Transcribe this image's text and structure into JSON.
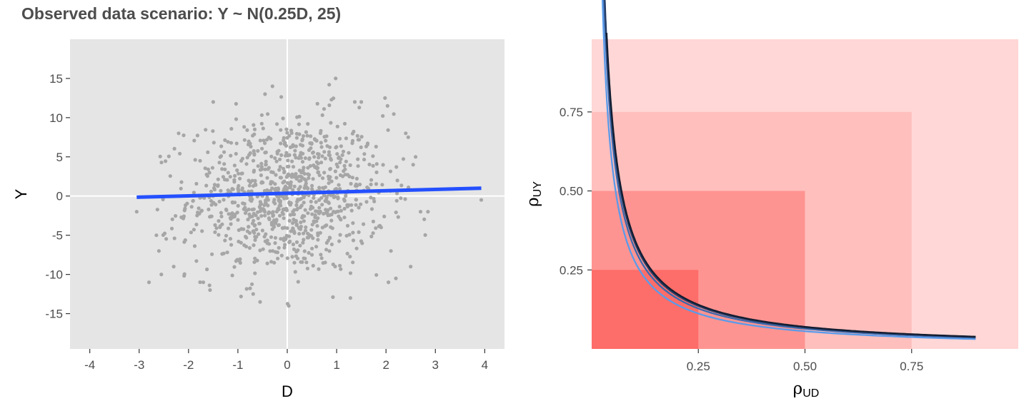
{
  "title": "Observed data scenario: Y ~ N(0.25D, 25)",
  "chart_data": [
    {
      "type": "scatter",
      "xlabel": "D",
      "ylabel": "Y",
      "xlim": [
        -4.4,
        4.4
      ],
      "ylim": [
        -19.5,
        20
      ],
      "x_ticks": [
        {
          "v": -4,
          "label": "-4"
        },
        {
          "v": -3,
          "label": "-3"
        },
        {
          "v": -2,
          "label": "-2"
        },
        {
          "v": -1,
          "label": "-1"
        },
        {
          "v": 0,
          "label": "0"
        },
        {
          "v": 1,
          "label": "1"
        },
        {
          "v": 2,
          "label": "2"
        },
        {
          "v": 3,
          "label": "3"
        },
        {
          "v": 4,
          "label": "4"
        }
      ],
      "y_ticks": [
        {
          "v": -15,
          "label": "-15"
        },
        {
          "v": -10,
          "label": "-10"
        },
        {
          "v": -5,
          "label": "-5"
        },
        {
          "v": 0,
          "label": "0"
        },
        {
          "v": 5,
          "label": "5"
        },
        {
          "v": 10,
          "label": "10"
        },
        {
          "v": 15,
          "label": "15"
        }
      ],
      "n_points": 1000,
      "point_sd": {
        "x": 1.0,
        "y": 5.0
      },
      "points": [
        [
          -3.05,
          -2.0
        ],
        [
          3.93,
          -0.5
        ],
        [
          -2.8,
          -11.0
        ],
        [
          -2.55,
          -10.0
        ],
        [
          -2.65,
          -5.0
        ],
        [
          -2.6,
          -7.0
        ],
        [
          2.85,
          -2.0
        ],
        [
          2.7,
          -2.0
        ],
        [
          2.55,
          4.0
        ],
        [
          2.6,
          5.0
        ],
        [
          2.4,
          8.0
        ],
        [
          2.45,
          7.5
        ],
        [
          1.98,
          12.5
        ],
        [
          2.03,
          11.5
        ],
        [
          0.98,
          15.0
        ],
        [
          0.85,
          14.2
        ],
        [
          -0.3,
          14.0
        ],
        [
          -0.45,
          13.0
        ],
        [
          2.2,
          -10.5
        ],
        [
          2.05,
          -11.0
        ],
        [
          2.5,
          -9.0
        ],
        [
          -0.55,
          -13.5
        ],
        [
          0.03,
          -14.0
        ],
        [
          1.28,
          -13.0
        ],
        [
          -2.2,
          8.0
        ],
        [
          -1.5,
          12.0
        ],
        [
          1.5,
          12.0
        ],
        [
          -2.3,
          -9.0
        ],
        [
          2.1,
          -7.0
        ],
        [
          -1.7,
          -11.0
        ]
      ],
      "series": [
        {
          "name": "",
          "type": "line",
          "color": "#2450ff",
          "x": [
            -3.05,
            3.93
          ],
          "y": [
            -0.15,
            1.0
          ]
        }
      ]
    },
    {
      "type": "line",
      "xlabel": {
        "symbol": "ρ",
        "sub": "UD"
      },
      "ylabel": {
        "symbol": "ρ",
        "sub": "UY"
      },
      "xlim": [
        0,
        1
      ],
      "ylim": [
        0,
        0.98
      ],
      "x_ticks": [
        {
          "v": 0.25,
          "label": "0.25"
        },
        {
          "v": 0.5,
          "label": "0.50"
        },
        {
          "v": 0.75,
          "label": "0.75"
        }
      ],
      "y_ticks": [
        {
          "v": 0.25,
          "label": "0.25"
        },
        {
          "v": 0.5,
          "label": "0.50"
        },
        {
          "v": 0.75,
          "label": "0.75"
        }
      ],
      "rects": [
        {
          "x": 1.0,
          "y": 0.98,
          "color": "#ffd7d6"
        },
        {
          "x": 0.75,
          "y": 0.75,
          "color": "#ffbfbd"
        },
        {
          "x": 0.5,
          "y": 0.5,
          "color": "#fe9491"
        },
        {
          "x": 0.25,
          "y": 0.25,
          "color": "#fd6d69"
        }
      ],
      "series": [
        {
          "name": "",
          "color": "#5a9bea",
          "k": 0.028,
          "x_start": 0.007,
          "x_end": 0.9
        },
        {
          "name": "",
          "color": "#3c69ad",
          "k": 0.032,
          "x_start": 0.017,
          "x_end": 0.9
        },
        {
          "name": "",
          "color": "#253e68",
          "k": 0.034,
          "x_start": 0.028,
          "x_end": 0.9
        },
        {
          "name": "",
          "color": "#131d31",
          "k": 0.035,
          "x_start": 0.035,
          "x_end": 0.9
        }
      ]
    }
  ]
}
